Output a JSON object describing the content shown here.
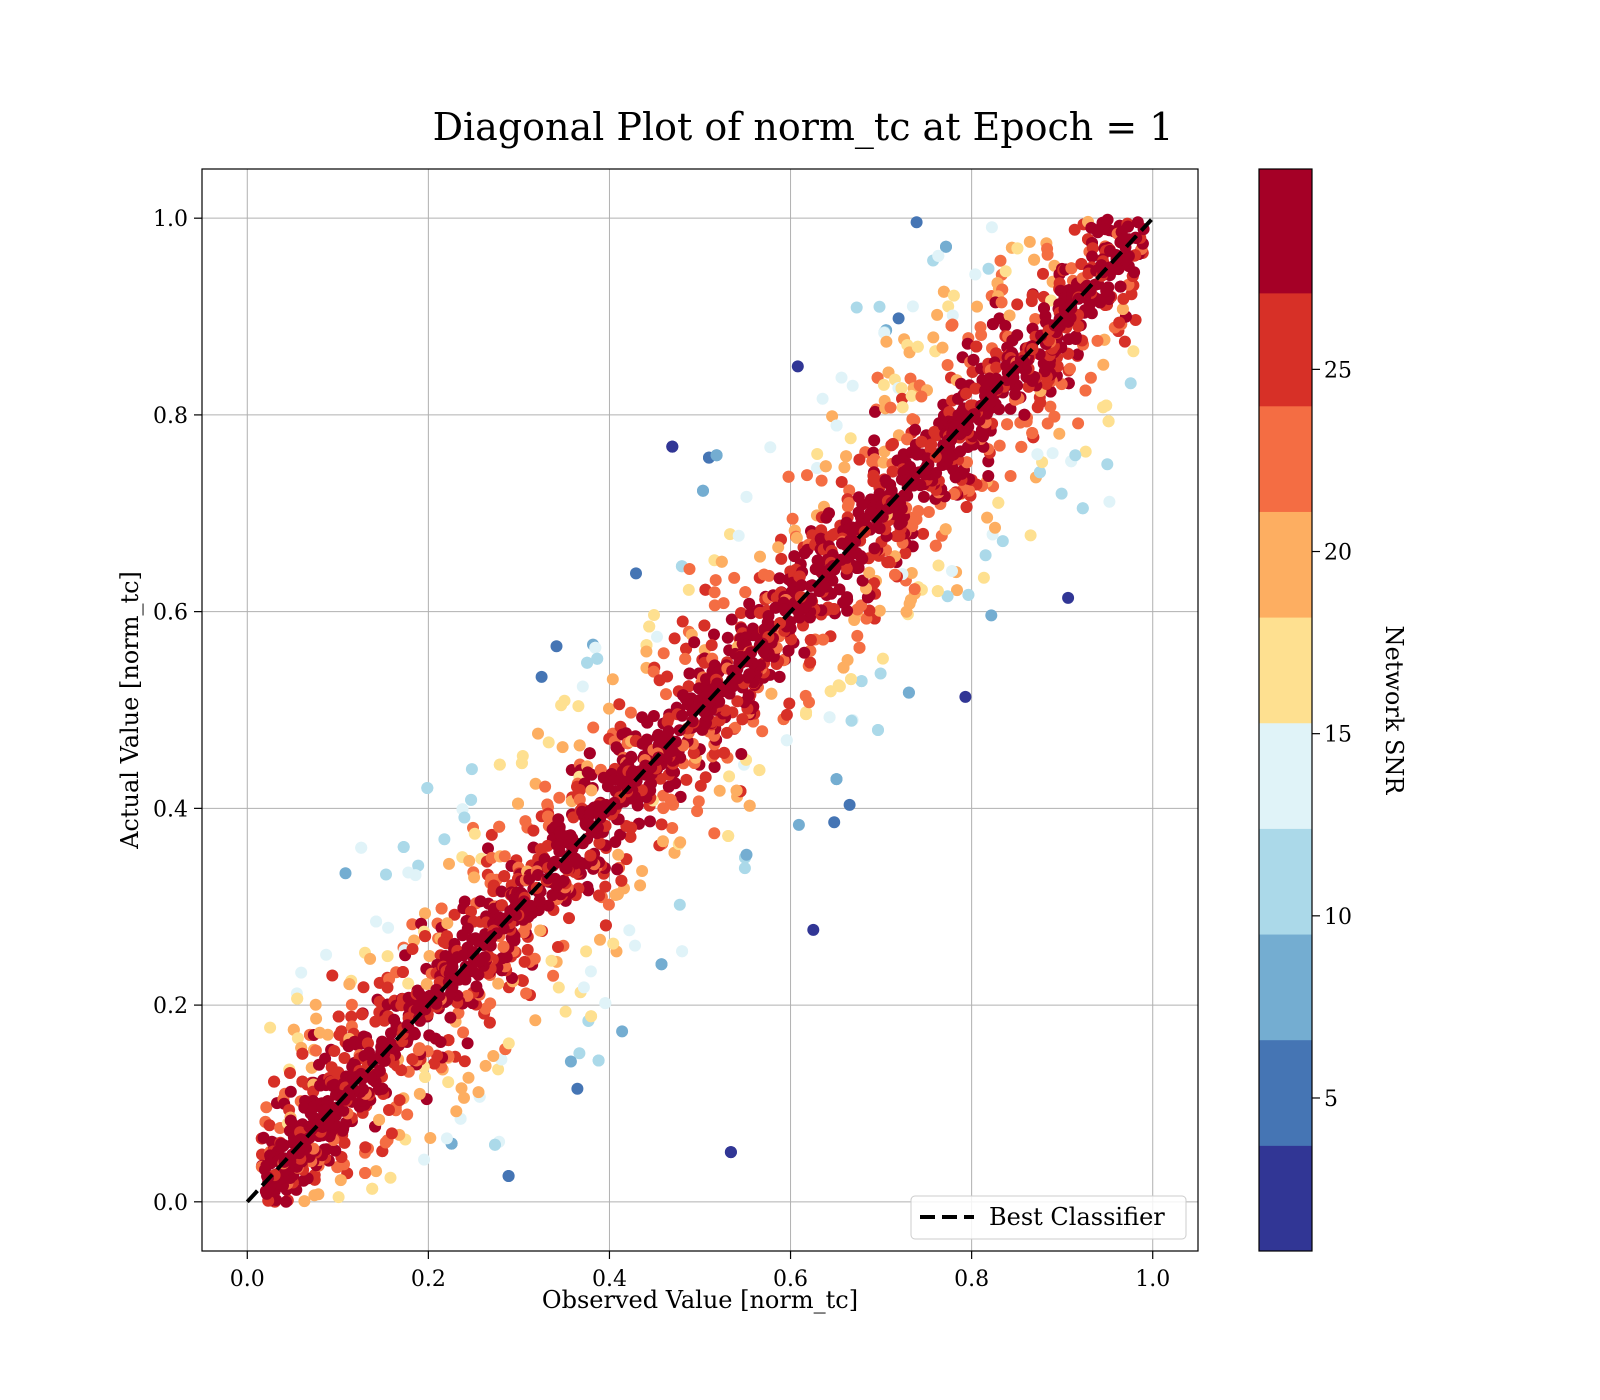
{
  "chart_data": {
    "type": "scatter",
    "title": "Diagonal Plot of norm_tc at Epoch = 1",
    "xlabel": "Observed Value [norm_tc]",
    "ylabel": "Actual Value [norm_tc]",
    "xlim": [
      -0.05,
      1.05
    ],
    "ylim": [
      -0.05,
      1.05
    ],
    "xticks": [
      0.0,
      0.2,
      0.4,
      0.6,
      0.8,
      1.0
    ],
    "yticks": [
      0.0,
      0.2,
      0.4,
      0.6,
      0.8,
      1.0
    ],
    "xtick_labels": [
      "0.0",
      "0.2",
      "0.4",
      "0.6",
      "0.8",
      "1.0"
    ],
    "ytick_labels": [
      "0.0",
      "0.2",
      "0.4",
      "0.6",
      "0.8",
      "1.0"
    ],
    "grid": true,
    "legend": {
      "placement": "lower-right",
      "entries": [
        "Best Classifier"
      ]
    },
    "reference_line": {
      "name": "Best Classifier",
      "x": [
        0.0,
        1.0
      ],
      "y": [
        0.0,
        1.0
      ],
      "style": "dashed",
      "color": "#000000"
    },
    "colorbar": {
      "label": "Network SNR",
      "range": [
        0.8,
        30.5
      ],
      "ticks": [
        5,
        10,
        15,
        20,
        25
      ],
      "tick_labels": [
        "5",
        "10",
        "15",
        "20",
        "25"
      ],
      "bands": [
        {
          "from": 0.8,
          "to": 3.7,
          "color": "#313695"
        },
        {
          "from": 3.7,
          "to": 6.6,
          "color": "#4575b4"
        },
        {
          "from": 6.6,
          "to": 9.5,
          "color": "#74add1"
        },
        {
          "from": 9.5,
          "to": 12.4,
          "color": "#abd9e9"
        },
        {
          "from": 12.4,
          "to": 15.3,
          "color": "#e0f3f8"
        },
        {
          "from": 15.3,
          "to": 18.2,
          "color": "#fee090"
        },
        {
          "from": 18.2,
          "to": 21.1,
          "color": "#fdae61"
        },
        {
          "from": 21.1,
          "to": 24.0,
          "color": "#f46d43"
        },
        {
          "from": 24.0,
          "to": 27.1,
          "color": "#d73027"
        },
        {
          "from": 27.1,
          "to": 30.5,
          "color": "#a50026"
        }
      ]
    },
    "scatter_summary": {
      "description_points": "Dense cloud of points along diagonal; high SNR (dark red) near diagonal, low SNR (blue) far from it",
      "y_range": [
        0.0,
        1.0
      ],
      "diag_half_width": [
        0.03,
        0.24
      ],
      "color_by": "Network SNR"
    }
  }
}
